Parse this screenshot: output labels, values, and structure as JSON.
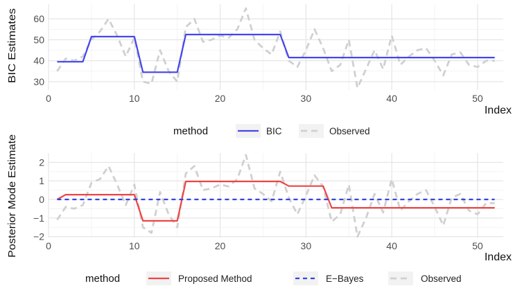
{
  "chart_data": [
    {
      "type": "line",
      "ylabel": "BIC Estimates",
      "xlabel": "Index",
      "xlim": [
        0,
        53
      ],
      "ylim": [
        26,
        67
      ],
      "xticks": [
        0,
        10,
        20,
        30,
        40,
        50
      ],
      "yticks": [
        30,
        40,
        50,
        60
      ],
      "grid": true,
      "legend": {
        "position": "bottom",
        "title": "method",
        "entries": [
          "BIC",
          "Observed"
        ]
      },
      "series": [
        {
          "name": "BIC",
          "color": "#4444ee",
          "dash": "solid",
          "x": [
            1,
            2,
            3,
            4,
            5,
            6,
            7,
            8,
            9,
            10,
            11,
            12,
            13,
            14,
            15,
            16,
            17,
            18,
            19,
            20,
            21,
            22,
            23,
            24,
            25,
            26,
            27,
            28,
            29,
            30,
            31,
            32,
            33,
            34,
            35,
            36,
            37,
            38,
            39,
            40,
            41,
            42,
            43,
            44,
            45,
            46,
            47,
            48,
            49,
            50,
            51,
            52
          ],
          "y": [
            39.5,
            39.5,
            39.5,
            39.5,
            51.5,
            51.5,
            51.5,
            51.5,
            51.5,
            51.5,
            34.5,
            34.5,
            34.5,
            34.5,
            34.5,
            52.5,
            52.5,
            52.5,
            52.5,
            52.5,
            52.5,
            52.5,
            52.5,
            52.5,
            52.5,
            52.5,
            52.5,
            41.5,
            41.5,
            41.5,
            41.5,
            41.5,
            41.5,
            41.5,
            41.5,
            41.5,
            41.5,
            41.5,
            41.5,
            41.5,
            41.5,
            41.5,
            41.5,
            41.5,
            41.5,
            41.5,
            41.5,
            41.5,
            41.5,
            41.5,
            41.5,
            41.5
          ]
        },
        {
          "name": "Observed",
          "color": "#d0d0d0",
          "dash": "dashed",
          "x": [
            1,
            2,
            3,
            4,
            5,
            6,
            7,
            8,
            9,
            10,
            11,
            12,
            13,
            14,
            15,
            16,
            17,
            18,
            19,
            20,
            21,
            22,
            23,
            24,
            25,
            26,
            27,
            28,
            29,
            30,
            31,
            32,
            33,
            34,
            35,
            36,
            37,
            38,
            39,
            40,
            41,
            42,
            43,
            44,
            45,
            46,
            47,
            48,
            49,
            50,
            51,
            52
          ],
          "y": [
            35,
            41,
            40,
            42,
            50,
            54,
            60,
            52,
            42,
            51,
            30,
            29,
            45,
            35,
            30,
            56,
            60,
            49,
            50,
            52,
            51,
            55,
            65,
            50,
            46,
            43,
            54,
            40,
            37,
            45,
            55,
            46,
            35,
            38,
            50,
            27,
            36,
            45,
            36,
            52,
            38,
            42,
            45,
            46,
            40,
            33,
            43,
            44,
            38,
            37,
            40,
            40
          ]
        }
      ]
    },
    {
      "type": "line",
      "ylabel": "Posterior Mode Estimate",
      "xlabel": "Index",
      "xlim": [
        0,
        53
      ],
      "ylim": [
        -2.05,
        2.5
      ],
      "xticks": [
        0,
        10,
        20,
        30,
        40,
        50
      ],
      "yticks": [
        -2,
        -1,
        0,
        1,
        2
      ],
      "grid": true,
      "legend": {
        "position": "bottom",
        "title": "method",
        "entries": [
          "Proposed Method",
          "E−Bayes",
          "Observed"
        ]
      },
      "series": [
        {
          "name": "Proposed Method",
          "color": "#ee4444",
          "dash": "solid",
          "x": [
            1,
            2,
            3,
            4,
            5,
            6,
            7,
            8,
            9,
            10,
            11,
            12,
            13,
            14,
            15,
            16,
            17,
            18,
            19,
            20,
            21,
            22,
            23,
            24,
            25,
            26,
            27,
            28,
            29,
            30,
            31,
            32,
            33,
            34,
            35,
            36,
            37,
            38,
            39,
            40,
            41,
            42,
            43,
            44,
            45,
            46,
            47,
            48,
            49,
            50,
            51,
            52
          ],
          "y": [
            0,
            0.26,
            0.26,
            0.26,
            0.26,
            0.26,
            0.26,
            0.26,
            0.26,
            0.26,
            -1.15,
            -1.15,
            -1.15,
            -1.15,
            -1.15,
            0.97,
            0.97,
            0.97,
            0.97,
            0.97,
            0.97,
            0.97,
            0.97,
            0.97,
            0.97,
            0.97,
            0.97,
            0.72,
            0.72,
            0.72,
            0.72,
            0.72,
            -0.45,
            -0.45,
            -0.45,
            -0.45,
            -0.45,
            -0.45,
            -0.45,
            -0.45,
            -0.45,
            -0.45,
            -0.45,
            -0.45,
            -0.45,
            -0.45,
            -0.45,
            -0.45,
            -0.45,
            -0.45,
            -0.45,
            -0.45
          ]
        },
        {
          "name": "E−Bayes",
          "color": "#3344dd",
          "dash": "dashed",
          "x": [
            1,
            52
          ],
          "y": [
            0,
            0
          ]
        },
        {
          "name": "Observed",
          "color": "#d0d0d0",
          "dash": "dashed",
          "x": [
            1,
            2,
            3,
            4,
            5,
            6,
            7,
            8,
            9,
            10,
            11,
            12,
            13,
            14,
            15,
            16,
            17,
            18,
            19,
            20,
            21,
            22,
            23,
            24,
            25,
            26,
            27,
            28,
            29,
            30,
            31,
            32,
            33,
            34,
            35,
            36,
            37,
            38,
            39,
            40,
            41,
            42,
            43,
            44,
            45,
            46,
            47,
            48,
            49,
            50,
            51,
            52
          ],
          "y": [
            -1.1,
            -0.4,
            -0.5,
            -0.3,
            0.9,
            1.1,
            1.8,
            0.8,
            -0.3,
            0.8,
            -1.5,
            -1.8,
            0.4,
            -0.8,
            -1.5,
            1.4,
            1.8,
            0.5,
            0.6,
            0.8,
            0.7,
            1.1,
            2.4,
            0.6,
            0.3,
            -0.1,
            1.5,
            0.1,
            -0.8,
            0.2,
            1.3,
            0.7,
            -1.2,
            -0.8,
            0.8,
            -2,
            -1,
            0.3,
            -0.7,
            1.1,
            -0.6,
            -0.1,
            0.3,
            0.5,
            -0.4,
            -1.4,
            0.1,
            0.3,
            -0.6,
            -0.8,
            -0.2,
            -0.2
          ]
        }
      ]
    }
  ]
}
